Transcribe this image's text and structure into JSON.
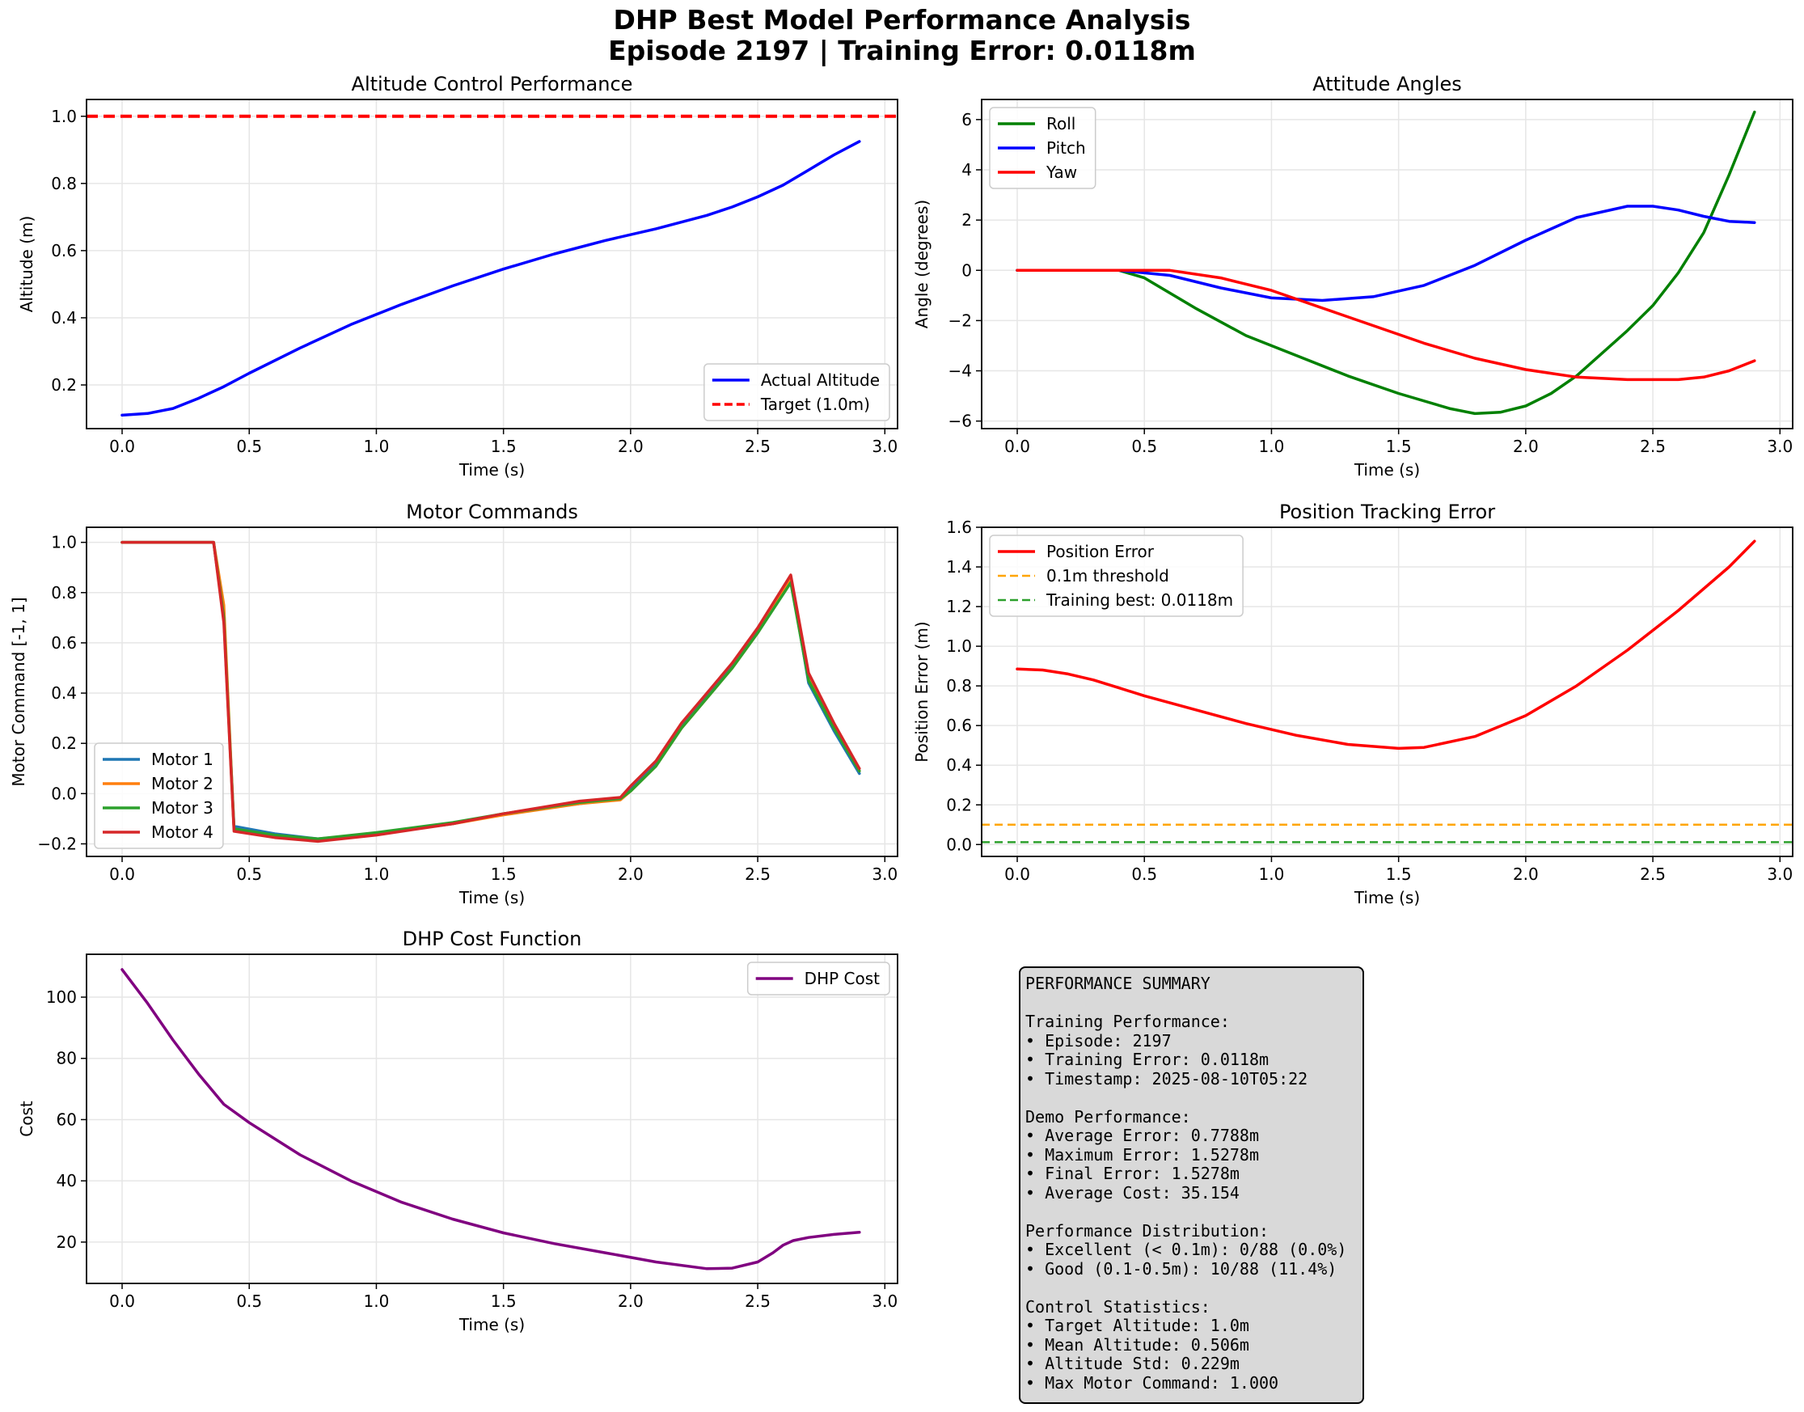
{
  "figure": {
    "title_line1": "DHP Best Model Performance Analysis",
    "title_line2": "Episode 2197 | Training Error: 0.0118m"
  },
  "chart_data": [
    {
      "id": "altitude",
      "type": "line",
      "title": "Altitude Control Performance",
      "xlabel": "Time (s)",
      "ylabel": "Altitude (m)",
      "xlim": [
        -0.14,
        3.05
      ],
      "ylim": [
        0.07,
        1.05
      ],
      "xticks": [
        0.0,
        0.5,
        1.0,
        1.5,
        2.0,
        2.5,
        3.0
      ],
      "yticks": [
        0.2,
        0.4,
        0.6,
        0.8,
        1.0
      ],
      "tick_decimals": 1,
      "grid": true,
      "legend": "lower right",
      "series": [
        {
          "name": "Actual Altitude",
          "color": "#0000ff",
          "x": [
            0.0,
            0.1,
            0.2,
            0.3,
            0.4,
            0.5,
            0.7,
            0.9,
            1.1,
            1.3,
            1.5,
            1.7,
            1.9,
            2.1,
            2.3,
            2.4,
            2.5,
            2.6,
            2.7,
            2.8,
            2.9
          ],
          "y": [
            0.11,
            0.115,
            0.13,
            0.16,
            0.195,
            0.235,
            0.31,
            0.38,
            0.44,
            0.495,
            0.545,
            0.59,
            0.63,
            0.665,
            0.705,
            0.73,
            0.76,
            0.795,
            0.84,
            0.885,
            0.925
          ]
        },
        {
          "name": "Target (1.0m)",
          "color": "#ff0000",
          "dash": "dashed",
          "hline": 1.0
        }
      ]
    },
    {
      "id": "attitude",
      "type": "line",
      "title": "Attitude Angles",
      "xlabel": "Time (s)",
      "ylabel": "Angle (degrees)",
      "xlim": [
        -0.14,
        3.05
      ],
      "ylim": [
        -6.3,
        6.8
      ],
      "xticks": [
        0.0,
        0.5,
        1.0,
        1.5,
        2.0,
        2.5,
        3.0
      ],
      "yticks": [
        -6,
        -4,
        -2,
        0,
        2,
        4,
        6
      ],
      "tick_decimals": 0,
      "grid": true,
      "legend": "upper left",
      "series": [
        {
          "name": "Roll",
          "color": "#008000",
          "x": [
            0.0,
            0.3,
            0.4,
            0.5,
            0.7,
            0.9,
            1.1,
            1.3,
            1.5,
            1.7,
            1.8,
            1.9,
            2.0,
            2.1,
            2.2,
            2.3,
            2.4,
            2.5,
            2.6,
            2.7,
            2.8,
            2.9
          ],
          "y": [
            0.0,
            0.0,
            0.0,
            -0.3,
            -1.5,
            -2.6,
            -3.4,
            -4.2,
            -4.9,
            -5.5,
            -5.7,
            -5.65,
            -5.4,
            -4.9,
            -4.2,
            -3.3,
            -2.4,
            -1.4,
            -0.1,
            1.5,
            3.8,
            6.3
          ]
        },
        {
          "name": "Pitch",
          "color": "#0000ff",
          "x": [
            0.0,
            0.4,
            0.6,
            0.8,
            1.0,
            1.2,
            1.4,
            1.6,
            1.8,
            2.0,
            2.2,
            2.4,
            2.5,
            2.6,
            2.7,
            2.8,
            2.9
          ],
          "y": [
            0.0,
            0.0,
            -0.2,
            -0.7,
            -1.1,
            -1.2,
            -1.05,
            -0.6,
            0.2,
            1.2,
            2.1,
            2.55,
            2.55,
            2.4,
            2.15,
            1.95,
            1.9
          ]
        },
        {
          "name": "Yaw",
          "color": "#ff0000",
          "x": [
            0.0,
            0.4,
            0.6,
            0.8,
            1.0,
            1.2,
            1.4,
            1.6,
            1.8,
            2.0,
            2.2,
            2.4,
            2.6,
            2.7,
            2.8,
            2.9
          ],
          "y": [
            0.0,
            0.0,
            0.0,
            -0.3,
            -0.8,
            -1.5,
            -2.2,
            -2.9,
            -3.5,
            -3.95,
            -4.25,
            -4.35,
            -4.35,
            -4.25,
            -4.0,
            -3.6
          ]
        }
      ]
    },
    {
      "id": "motors",
      "type": "line",
      "title": "Motor Commands",
      "xlabel": "Time (s)",
      "ylabel": "Motor Command [-1, 1]",
      "xlim": [
        -0.14,
        3.05
      ],
      "ylim": [
        -0.25,
        1.06
      ],
      "xticks": [
        0.0,
        0.5,
        1.0,
        1.5,
        2.0,
        2.5,
        3.0
      ],
      "yticks": [
        -0.2,
        0.0,
        0.2,
        0.4,
        0.6,
        0.8,
        1.0
      ],
      "tick_decimals": 1,
      "grid": true,
      "legend": "lower left",
      "series": [
        {
          "name": "Motor 1",
          "color": "#1f77b4",
          "x": [
            0.0,
            0.36,
            0.4,
            0.44,
            0.6,
            0.77,
            1.0,
            1.3,
            1.5,
            1.8,
            1.96,
            2.0,
            2.1,
            2.2,
            2.3,
            2.4,
            2.5,
            2.63,
            2.7,
            2.8,
            2.9
          ],
          "y": [
            1.0,
            1.0,
            0.7,
            -0.13,
            -0.16,
            -0.18,
            -0.16,
            -0.12,
            -0.08,
            -0.04,
            -0.02,
            0.02,
            0.12,
            0.27,
            0.39,
            0.51,
            0.65,
            0.86,
            0.44,
            0.25,
            0.08
          ]
        },
        {
          "name": "Motor 2",
          "color": "#ff7f0e",
          "x": [
            0.0,
            0.36,
            0.4,
            0.44,
            0.6,
            0.77,
            1.0,
            1.3,
            1.5,
            1.8,
            1.96,
            2.0,
            2.1,
            2.2,
            2.3,
            2.4,
            2.5,
            2.63,
            2.7,
            2.8,
            2.9
          ],
          "y": [
            1.0,
            1.0,
            0.75,
            -0.14,
            -0.17,
            -0.185,
            -0.16,
            -0.12,
            -0.085,
            -0.04,
            -0.025,
            0.01,
            0.11,
            0.26,
            0.38,
            0.5,
            0.64,
            0.85,
            0.46,
            0.27,
            0.09
          ]
        },
        {
          "name": "Motor 3",
          "color": "#2ca02c",
          "x": [
            0.0,
            0.36,
            0.4,
            0.44,
            0.6,
            0.77,
            1.0,
            1.3,
            1.5,
            1.8,
            1.96,
            2.0,
            2.1,
            2.2,
            2.3,
            2.4,
            2.5,
            2.63,
            2.7,
            2.8,
            2.9
          ],
          "y": [
            1.0,
            1.0,
            0.7,
            -0.14,
            -0.165,
            -0.18,
            -0.155,
            -0.115,
            -0.08,
            -0.035,
            -0.02,
            0.01,
            0.11,
            0.26,
            0.38,
            0.5,
            0.64,
            0.84,
            0.45,
            0.26,
            0.09
          ]
        },
        {
          "name": "Motor 4",
          "color": "#d62728",
          "x": [
            0.0,
            0.36,
            0.4,
            0.44,
            0.6,
            0.77,
            1.0,
            1.3,
            1.5,
            1.8,
            1.96,
            2.0,
            2.1,
            2.2,
            2.3,
            2.4,
            2.5,
            2.63,
            2.7,
            2.8,
            2.9
          ],
          "y": [
            1.0,
            1.0,
            0.68,
            -0.15,
            -0.175,
            -0.19,
            -0.165,
            -0.12,
            -0.08,
            -0.03,
            -0.015,
            0.03,
            0.13,
            0.28,
            0.4,
            0.52,
            0.66,
            0.87,
            0.48,
            0.28,
            0.1
          ]
        }
      ]
    },
    {
      "id": "position_error",
      "type": "line",
      "title": "Position Tracking Error",
      "xlabel": "Time (s)",
      "ylabel": "Position Error (m)",
      "xlim": [
        -0.14,
        3.05
      ],
      "ylim": [
        -0.06,
        1.6
      ],
      "xticks": [
        0.0,
        0.5,
        1.0,
        1.5,
        2.0,
        2.5,
        3.0
      ],
      "yticks": [
        0.0,
        0.2,
        0.4,
        0.6,
        0.8,
        1.0,
        1.2,
        1.4,
        1.6
      ],
      "tick_decimals": 1,
      "grid": true,
      "legend": "upper left",
      "series": [
        {
          "name": "Position Error",
          "color": "#ff0000",
          "x": [
            0.0,
            0.1,
            0.2,
            0.3,
            0.4,
            0.5,
            0.7,
            0.9,
            1.1,
            1.3,
            1.5,
            1.6,
            1.8,
            2.0,
            2.2,
            2.4,
            2.6,
            2.8,
            2.9
          ],
          "y": [
            0.885,
            0.88,
            0.86,
            0.83,
            0.79,
            0.75,
            0.68,
            0.61,
            0.55,
            0.505,
            0.485,
            0.49,
            0.545,
            0.65,
            0.8,
            0.98,
            1.18,
            1.4,
            1.53
          ]
        },
        {
          "name": "0.1m threshold",
          "color": "#ffa500",
          "dash": "dashed",
          "hline": 0.1
        },
        {
          "name": "Training best: 0.0118m",
          "color": "#2ca02c",
          "dash": "dashed",
          "hline": 0.0118
        }
      ]
    },
    {
      "id": "cost",
      "type": "line",
      "title": "DHP Cost Function",
      "xlabel": "Time (s)",
      "ylabel": "Cost",
      "xlim": [
        -0.14,
        3.05
      ],
      "ylim": [
        6.5,
        114
      ],
      "xticks": [
        0.0,
        0.5,
        1.0,
        1.5,
        2.0,
        2.5,
        3.0
      ],
      "yticks": [
        20,
        40,
        60,
        80,
        100
      ],
      "tick_decimals": 0,
      "grid": true,
      "legend": "upper right",
      "series": [
        {
          "name": "DHP Cost",
          "color": "#800080",
          "x": [
            0.0,
            0.1,
            0.2,
            0.3,
            0.4,
            0.5,
            0.7,
            0.9,
            1.1,
            1.3,
            1.5,
            1.7,
            1.9,
            2.1,
            2.3,
            2.4,
            2.5,
            2.56,
            2.6,
            2.64,
            2.7,
            2.8,
            2.9
          ],
          "y": [
            109,
            98,
            86,
            75,
            65,
            59,
            48.5,
            40,
            33,
            27.5,
            23,
            19.5,
            16.5,
            13.5,
            11.3,
            11.5,
            13.5,
            16.5,
            19.0,
            20.5,
            21.5,
            22.5,
            23.2
          ]
        }
      ]
    }
  ],
  "summary": {
    "lines": [
      "PERFORMANCE SUMMARY",
      "",
      "Training Performance:",
      "• Episode: 2197",
      "• Training Error: 0.0118m",
      "• Timestamp: 2025-08-10T05:22",
      "",
      "Demo Performance:",
      "• Average Error: 0.7788m",
      "• Maximum Error: 1.5278m",
      "• Final Error: 1.5278m",
      "• Average Cost: 35.154",
      "",
      "Performance Distribution:",
      "• Excellent (< 0.1m): 0/88 (0.0%)",
      "• Good (0.1-0.5m): 10/88 (11.4%)",
      "",
      "Control Statistics:",
      "• Target Altitude: 1.0m",
      "• Mean Altitude: 0.506m",
      "• Altitude Std: 0.229m",
      "• Max Motor Command: 1.000"
    ]
  }
}
